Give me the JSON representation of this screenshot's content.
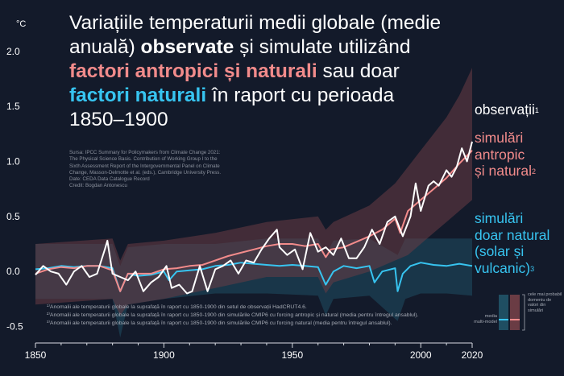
{
  "title": {
    "part1": "Variațiile temperaturii medii globale (medie anuală) ",
    "bold1": "observate",
    "part2": " și simulate utilizând ",
    "bold2": "factori antropici și naturali",
    "part3": " sau doar ",
    "bold3": "factori naturali",
    "part4": " în raport cu perioada 1850–1900"
  },
  "source_lines": [
    "Sursa: IPCC Summary for Policymakers from Climate Change 2021:",
    "The Physical Science Basis. Contribution of Working Group I to the",
    "Sixth Assessment Report of the Intergovernmental Panel on Climate",
    "Change, Masson-Delmotte et al. (eds.), Cambridge University Press.",
    "Date: CEDA Data Catalogue Record",
    "Credit: Bogdan Antonescu"
  ],
  "footnotes": [
    "¹⁾Anomalii ale temperaturii globale la suprafață în raport cu 1850-1900 din setul de observații HadCRUT4.6.",
    "²⁾Anomalii ale temperaturii globale la suprafață în raport cu 1850-1900 din simulările CMIP6 cu forcing antropic și natural (media pentru întregul ansablul).",
    "³⁾Anomalii ale temperaturii globale la suprafață în raport cu 1850-1900 din simulările CMIP6 cu forcing natural (media pentru întregul ansablul)."
  ],
  "series_labels": {
    "obs_text": "observații",
    "obs_sup": "1",
    "ant_line1": "simulări",
    "ant_line2": "antropic",
    "ant_line3": "și natural",
    "ant_sup": "2",
    "nat_line1": "simulări",
    "nat_line2": "doar natural",
    "nat_line3": "(solar și",
    "nat_line4": "vulcanic)",
    "nat_sup": "3"
  },
  "legend": {
    "mean_label": "media multi-model",
    "range_label": "cele mai probabil domeniu de valori din simulări"
  },
  "colors": {
    "background": "#131a2a",
    "observed": "#ffffff",
    "anthropogenic": "#f28b8b",
    "anthropogenic_band": "#6a3c44",
    "natural": "#37c4f0",
    "natural_band": "#1f4e62"
  },
  "chart_data": {
    "type": "line",
    "unit": "°C",
    "xlim": [
      1850,
      2020
    ],
    "ylim": [
      -0.65,
      2.05
    ],
    "x_ticks": [
      1850,
      1900,
      1950,
      2000,
      2020
    ],
    "y_ticks": [
      -0.5,
      0.0,
      0.5,
      1.0,
      1.5,
      2.0
    ],
    "y_tick_labels": [
      "-0.5",
      "0.0",
      "0.5",
      "1.0",
      "1.5",
      "2.0"
    ],
    "grid": false,
    "series": [
      {
        "key": "observed",
        "x": [
          1850,
          1853,
          1856,
          1859,
          1862,
          1865,
          1868,
          1871,
          1874,
          1877,
          1878,
          1880,
          1883,
          1886,
          1889,
          1892,
          1895,
          1898,
          1901,
          1903,
          1906,
          1909,
          1911,
          1914,
          1917,
          1920,
          1923,
          1926,
          1929,
          1932,
          1935,
          1938,
          1941,
          1944,
          1945,
          1948,
          1951,
          1954,
          1957,
          1960,
          1963,
          1966,
          1969,
          1972,
          1975,
          1978,
          1981,
          1984,
          1987,
          1990,
          1993,
          1996,
          1998,
          2000,
          2003,
          2005,
          2007,
          2010,
          2012,
          2014,
          2016,
          2018,
          2020
        ],
        "values": [
          -0.03,
          0.05,
          0.0,
          -0.02,
          -0.12,
          0.0,
          0.05,
          -0.05,
          -0.02,
          0.2,
          0.28,
          -0.02,
          -0.05,
          -0.08,
          0.0,
          -0.18,
          -0.1,
          -0.05,
          0.05,
          -0.15,
          -0.12,
          -0.2,
          -0.18,
          0.05,
          -0.18,
          0.02,
          0.05,
          0.1,
          -0.02,
          0.1,
          0.08,
          0.2,
          0.3,
          0.38,
          0.22,
          0.15,
          0.2,
          0.02,
          0.35,
          0.18,
          0.22,
          0.15,
          0.3,
          0.12,
          0.12,
          0.22,
          0.38,
          0.25,
          0.45,
          0.5,
          0.32,
          0.5,
          0.8,
          0.55,
          0.78,
          0.82,
          0.78,
          0.92,
          0.86,
          0.95,
          1.12,
          1.0,
          1.18
        ]
      },
      {
        "key": "anthropogenic",
        "x": [
          1850,
          1855,
          1860,
          1865,
          1870,
          1875,
          1880,
          1883,
          1886,
          1890,
          1895,
          1900,
          1905,
          1910,
          1915,
          1920,
          1925,
          1930,
          1935,
          1940,
          1945,
          1950,
          1955,
          1960,
          1963,
          1965,
          1970,
          1975,
          1980,
          1985,
          1990,
          1992,
          1995,
          2000,
          2005,
          2010,
          2015,
          2020
        ],
        "values": [
          -0.02,
          0.02,
          0.04,
          0.03,
          0.05,
          0.05,
          0.01,
          -0.18,
          -0.02,
          -0.02,
          -0.02,
          0.02,
          0.03,
          0.05,
          0.06,
          0.1,
          0.14,
          0.17,
          0.2,
          0.23,
          0.25,
          0.25,
          0.23,
          0.25,
          0.13,
          0.2,
          0.22,
          0.27,
          0.32,
          0.38,
          0.48,
          0.35,
          0.55,
          0.65,
          0.75,
          0.85,
          0.98,
          1.1
        ]
      },
      {
        "key": "natural",
        "x": [
          1850,
          1855,
          1860,
          1865,
          1870,
          1875,
          1880,
          1883,
          1886,
          1890,
          1895,
          1900,
          1902,
          1905,
          1910,
          1915,
          1920,
          1925,
          1930,
          1935,
          1940,
          1945,
          1950,
          1955,
          1960,
          1963,
          1966,
          1970,
          1975,
          1980,
          1982,
          1985,
          1990,
          1991,
          1993,
          1996,
          2000,
          2005,
          2010,
          2015,
          2020
        ],
        "values": [
          0.02,
          0.03,
          0.05,
          0.04,
          0.05,
          0.05,
          0.03,
          -0.18,
          -0.02,
          -0.04,
          -0.03,
          0.0,
          -0.08,
          0.0,
          0.01,
          0.02,
          0.05,
          0.06,
          0.08,
          0.07,
          0.06,
          0.05,
          0.06,
          0.05,
          0.04,
          -0.12,
          0.0,
          0.05,
          0.03,
          0.05,
          -0.1,
          0.0,
          0.03,
          -0.18,
          -0.02,
          0.05,
          0.08,
          0.06,
          0.05,
          0.07,
          0.05
        ]
      },
      {
        "key": "anthropogenic_range",
        "x": [
          1850,
          1880,
          1883,
          1886,
          1900,
          1920,
          1940,
          1960,
          1963,
          1966,
          1980,
          1990,
          1995,
          2000,
          2005,
          2010,
          2015,
          2020
        ],
        "low": [
          -0.3,
          -0.25,
          -0.4,
          -0.3,
          -0.25,
          -0.15,
          -0.05,
          -0.05,
          -0.2,
          -0.1,
          0.0,
          0.1,
          0.15,
          0.25,
          0.35,
          0.45,
          0.55,
          0.65
        ],
        "high": [
          0.25,
          0.3,
          0.1,
          0.25,
          0.28,
          0.35,
          0.45,
          0.5,
          0.38,
          0.45,
          0.6,
          0.8,
          0.95,
          1.1,
          1.25,
          1.4,
          1.6,
          1.85
        ]
      },
      {
        "key": "natural_range",
        "x": [
          1850,
          1880,
          1883,
          1886,
          1900,
          1920,
          1940,
          1960,
          1963,
          1966,
          1980,
          1991,
          1994,
          2000,
          2010,
          2020
        ],
        "low": [
          -0.25,
          -0.25,
          -0.6,
          -0.3,
          -0.25,
          -0.2,
          -0.2,
          -0.22,
          -0.4,
          -0.25,
          -0.22,
          -0.45,
          -0.25,
          -0.2,
          -0.2,
          -0.22
        ],
        "high": [
          0.25,
          0.25,
          0.05,
          0.22,
          0.25,
          0.25,
          0.3,
          0.3,
          0.15,
          0.28,
          0.3,
          0.15,
          0.3,
          0.3,
          0.3,
          0.3
        ]
      }
    ]
  }
}
